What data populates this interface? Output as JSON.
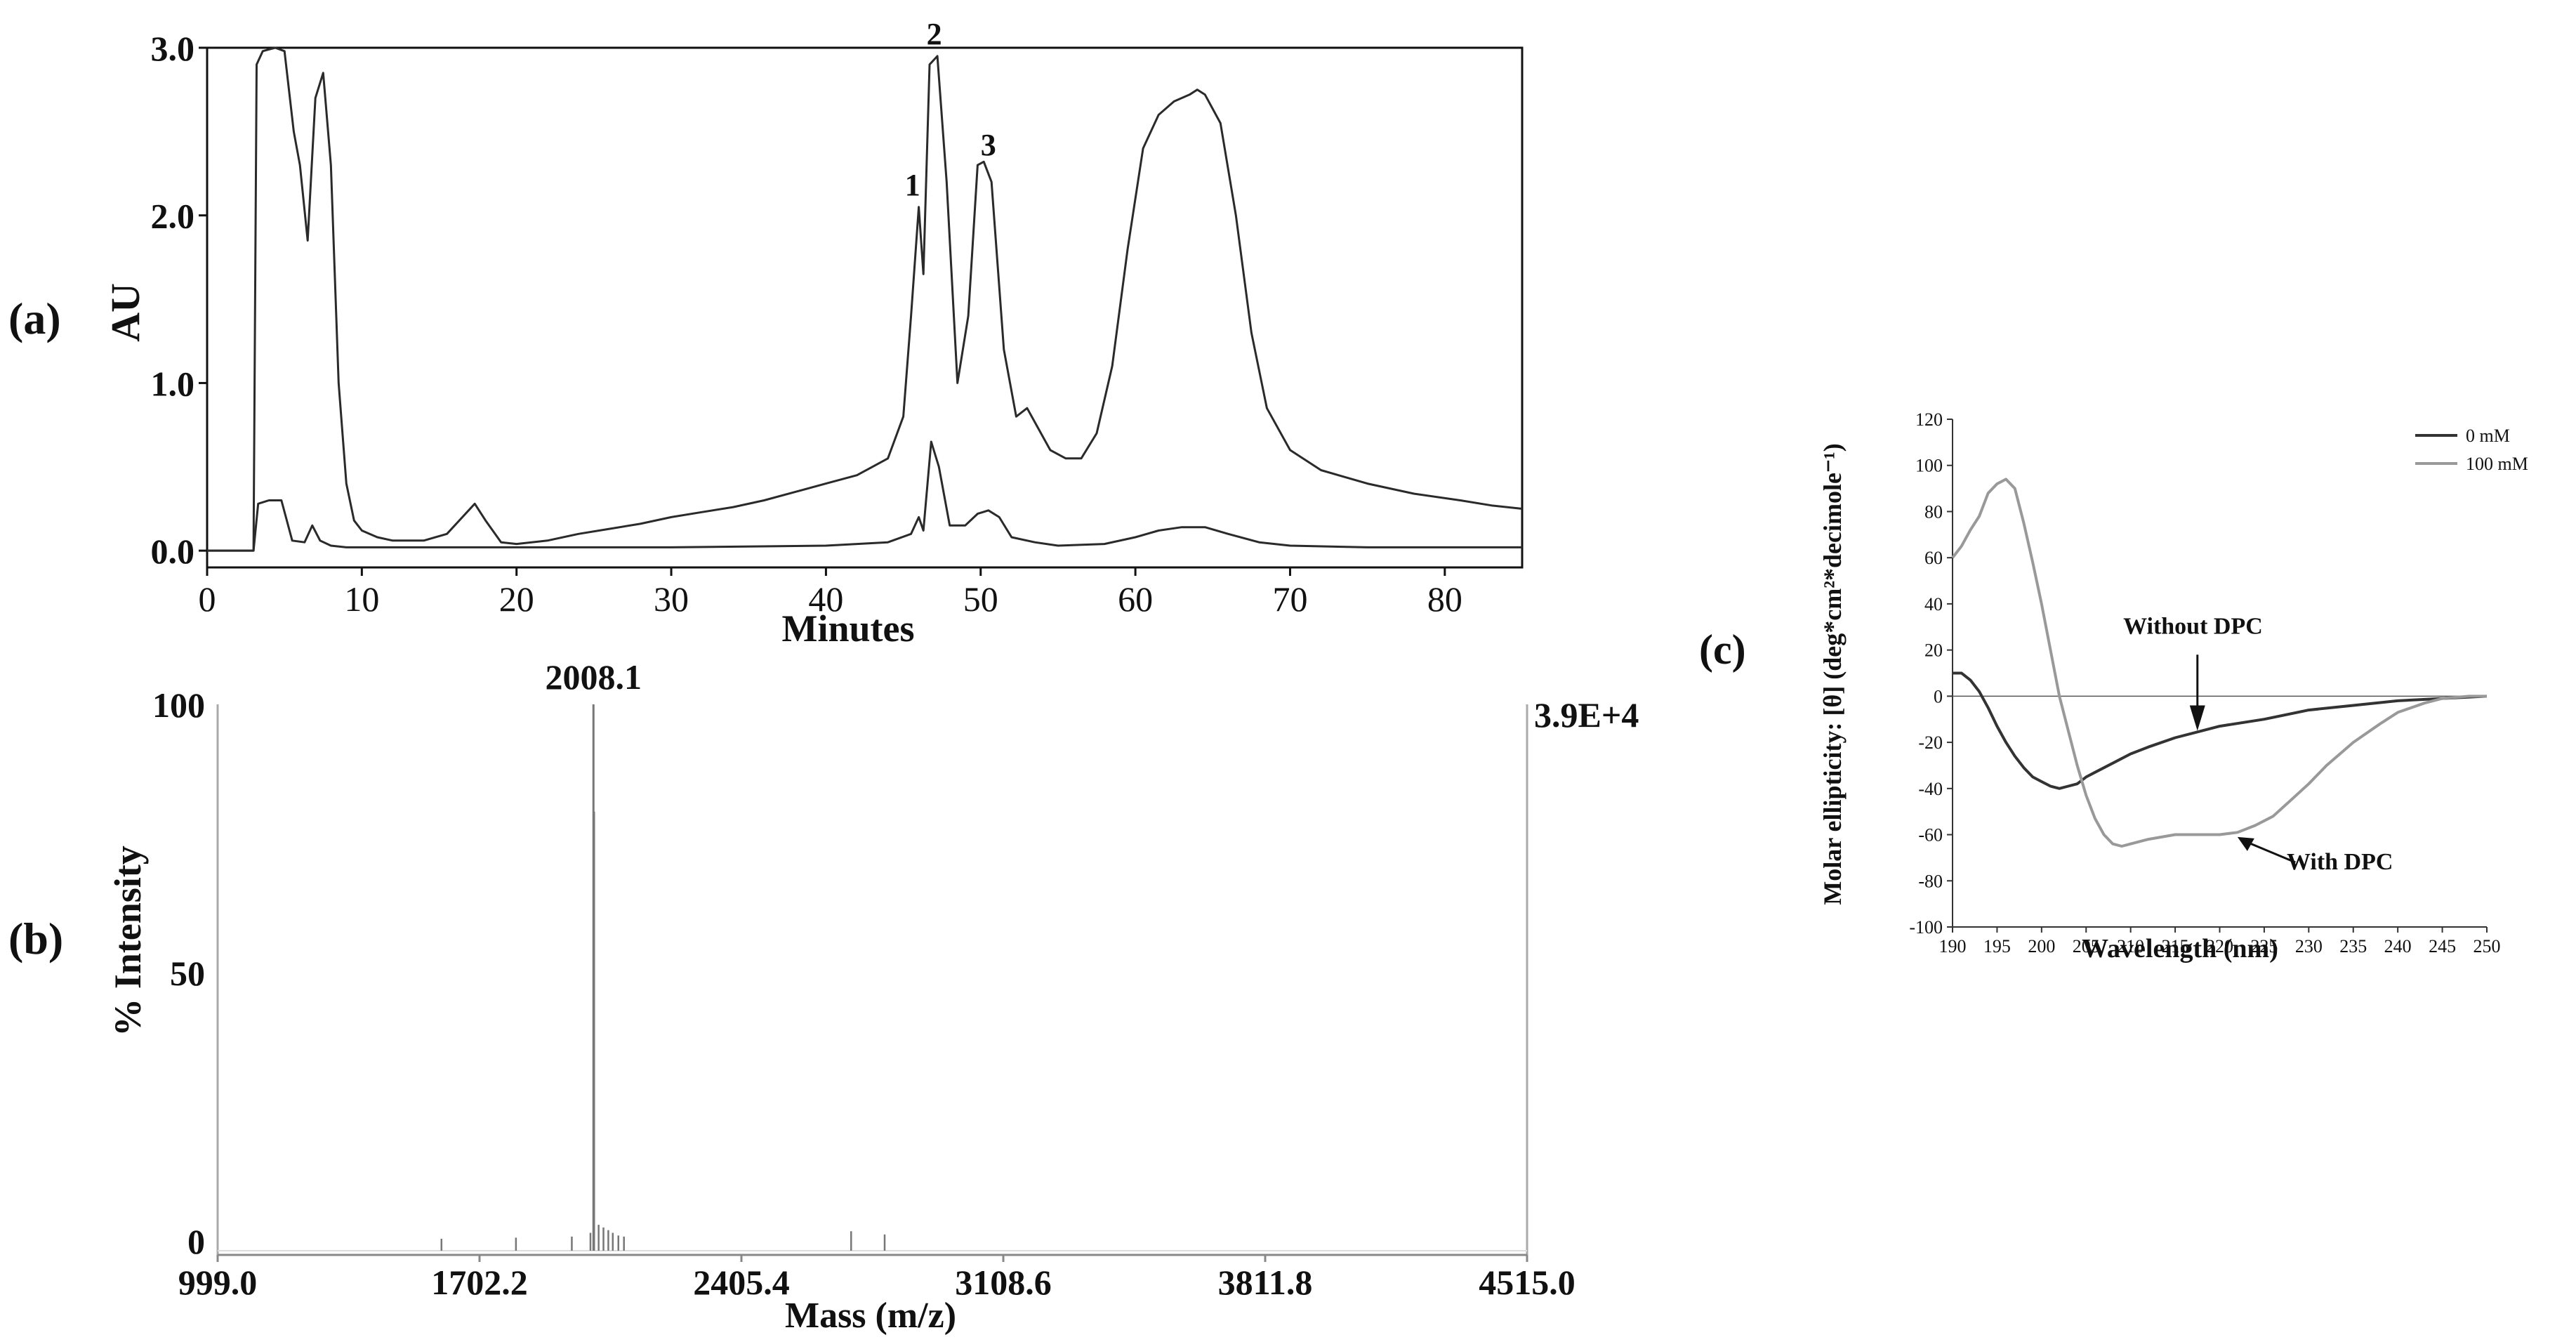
{
  "chart_data": [
    {
      "panel": "(a)",
      "type": "line",
      "xlabel": "Minutes",
      "ylabel": "AU",
      "xlim": [
        0,
        85
      ],
      "ylim": [
        -0.1,
        3.0
      ],
      "xticks": [
        0,
        10,
        20,
        30,
        40,
        50,
        60,
        70,
        80
      ],
      "yticks": [
        0.0,
        1.0,
        2.0,
        3.0
      ],
      "ytick_labels": [
        "0.0",
        "1.0",
        "2.0",
        "3.0"
      ],
      "grid": false,
      "series": [
        {
          "x": [
            0,
            3.0,
            3.2,
            3.6,
            4.4,
            5.0,
            5.6,
            6.0,
            6.5,
            7.0,
            7.5,
            8.0,
            8.5,
            9.0,
            9.5,
            10,
            11,
            12,
            14,
            15.5,
            16.5,
            17.3,
            18.0,
            19,
            20,
            22,
            24,
            26,
            28,
            30,
            32,
            34,
            36,
            38,
            40,
            42,
            43,
            44,
            45,
            45.5,
            46.0,
            46.3,
            46.7,
            47.2,
            47.8,
            48.5,
            49.2,
            49.8,
            50.2,
            50.7,
            51.5,
            52.3,
            53.0,
            53.6,
            54.5,
            55.5,
            56.5,
            57.5,
            58.5,
            59.5,
            60.5,
            61.5,
            62.5,
            63.5,
            64.0,
            64.5,
            65.5,
            66.5,
            67.5,
            68.5,
            70,
            72,
            75,
            78,
            81,
            83,
            85
          ],
          "y": [
            0.0,
            0.0,
            2.9,
            2.98,
            3.0,
            2.98,
            2.5,
            2.3,
            1.85,
            2.7,
            2.85,
            2.3,
            1.0,
            0.4,
            0.18,
            0.12,
            0.08,
            0.06,
            0.06,
            0.1,
            0.2,
            0.28,
            0.18,
            0.05,
            0.04,
            0.06,
            0.1,
            0.13,
            0.16,
            0.2,
            0.23,
            0.26,
            0.3,
            0.35,
            0.4,
            0.45,
            0.5,
            0.55,
            0.8,
            1.4,
            2.05,
            1.65,
            2.9,
            2.95,
            2.2,
            1.0,
            1.4,
            2.3,
            2.32,
            2.2,
            1.2,
            0.8,
            0.85,
            0.75,
            0.6,
            0.55,
            0.55,
            0.7,
            1.1,
            1.8,
            2.4,
            2.6,
            2.68,
            2.72,
            2.75,
            2.72,
            2.55,
            2.0,
            1.3,
            0.85,
            0.6,
            0.48,
            0.4,
            0.34,
            0.3,
            0.27,
            0.25
          ]
        },
        {
          "x": [
            0,
            3.0,
            3.3,
            4.0,
            4.8,
            5.5,
            6.3,
            6.8,
            7.3,
            8.0,
            9.0,
            10,
            12,
            16,
            20,
            30,
            40,
            44,
            45.5,
            46.0,
            46.3,
            46.8,
            47.3,
            48.0,
            49.0,
            49.8,
            50.5,
            51.2,
            52.0,
            53.5,
            55,
            58,
            60,
            61.5,
            63,
            64.5,
            66,
            68,
            70,
            75,
            80,
            85
          ],
          "y": [
            0.0,
            0.0,
            0.28,
            0.3,
            0.3,
            0.06,
            0.05,
            0.15,
            0.06,
            0.03,
            0.02,
            0.02,
            0.02,
            0.02,
            0.02,
            0.02,
            0.03,
            0.05,
            0.1,
            0.2,
            0.12,
            0.65,
            0.5,
            0.15,
            0.15,
            0.22,
            0.24,
            0.2,
            0.08,
            0.05,
            0.03,
            0.04,
            0.08,
            0.12,
            0.14,
            0.14,
            0.1,
            0.05,
            0.03,
            0.02,
            0.02,
            0.02
          ]
        }
      ],
      "annotations": [
        {
          "text": "1",
          "x": 45.6,
          "y": 2.12
        },
        {
          "text": "2",
          "x": 47.0,
          "y": 3.02
        },
        {
          "text": "3",
          "x": 50.5,
          "y": 2.36
        }
      ]
    },
    {
      "panel": "(b)",
      "type": "bar",
      "xlabel": "Mass (m/z)",
      "ylabel": "% Intensity",
      "xlim": [
        999.0,
        4515.0
      ],
      "ylim": [
        0,
        100
      ],
      "xticks": [
        999.0,
        1702.2,
        2405.4,
        3108.6,
        3811.8,
        4515.0
      ],
      "xtick_labels": [
        "999.0",
        "1702.2",
        "2405.4",
        "3108.6",
        "3811.8",
        "4515.0"
      ],
      "yticks": [
        0,
        50,
        100
      ],
      "right_label": "3.9E+4",
      "peak_label": "2008.1",
      "x": [
        1600,
        1800,
        1950,
        2000,
        2008.1,
        2010,
        2022,
        2035,
        2048,
        2060,
        2075,
        2090,
        2700,
        2790
      ],
      "values": [
        0.4,
        0.6,
        0.8,
        1.5,
        100,
        80,
        3,
        2.5,
        2,
        1.5,
        1,
        0.8,
        1.8,
        1.2
      ]
    },
    {
      "panel": "(c)",
      "type": "line",
      "xlabel": "Wavelength (nm)",
      "ylabel": "Molar ellipticity: [θ] (deg*cm²*decimole⁻¹)",
      "xlim": [
        190,
        250
      ],
      "ylim": [
        -100,
        120
      ],
      "xticks": [
        190,
        195,
        200,
        205,
        210,
        215,
        220,
        225,
        230,
        235,
        240,
        245,
        250
      ],
      "yticks": [
        -100,
        -80,
        -60,
        -40,
        -20,
        0,
        20,
        40,
        60,
        80,
        100,
        120
      ],
      "grid": false,
      "legend_position": "top-right",
      "series": [
        {
          "name": "0 mM",
          "color": "#333333",
          "x": [
            190,
            191,
            192,
            193,
            194,
            195,
            196,
            197,
            198,
            199,
            200,
            201,
            202,
            203,
            204,
            205,
            206,
            208,
            210,
            212,
            215,
            218,
            220,
            225,
            230,
            235,
            240,
            245,
            250
          ],
          "y": [
            10,
            10,
            7,
            2,
            -5,
            -13,
            -20,
            -26,
            -31,
            -35,
            -37,
            -39,
            -40,
            -39,
            -38,
            -35,
            -33,
            -29,
            -25,
            -22,
            -18,
            -15,
            -13,
            -10,
            -6,
            -4,
            -2,
            -1,
            0
          ]
        },
        {
          "name": "100 mM",
          "color": "#999999",
          "x": [
            190,
            191,
            192,
            193,
            194,
            195,
            196,
            197,
            198,
            199,
            200,
            201,
            202,
            203,
            204,
            205,
            206,
            207,
            208,
            209,
            210,
            212,
            215,
            218,
            220,
            222,
            224,
            226,
            228,
            230,
            232,
            235,
            238,
            240,
            243,
            245,
            248,
            250
          ],
          "y": [
            60,
            65,
            72,
            78,
            88,
            92,
            94,
            90,
            75,
            58,
            40,
            20,
            0,
            -15,
            -30,
            -43,
            -53,
            -60,
            -64,
            -65,
            -64,
            -62,
            -60,
            -60,
            -60,
            -59,
            -56,
            -52,
            -45,
            -38,
            -30,
            -20,
            -12,
            -7,
            -3,
            -1,
            0,
            0
          ]
        }
      ],
      "annotations": [
        {
          "text": "Without DPC",
          "x": 217.0,
          "y": 27
        },
        {
          "text": "With DPC",
          "x": 233.5,
          "y": -75
        }
      ]
    }
  ]
}
